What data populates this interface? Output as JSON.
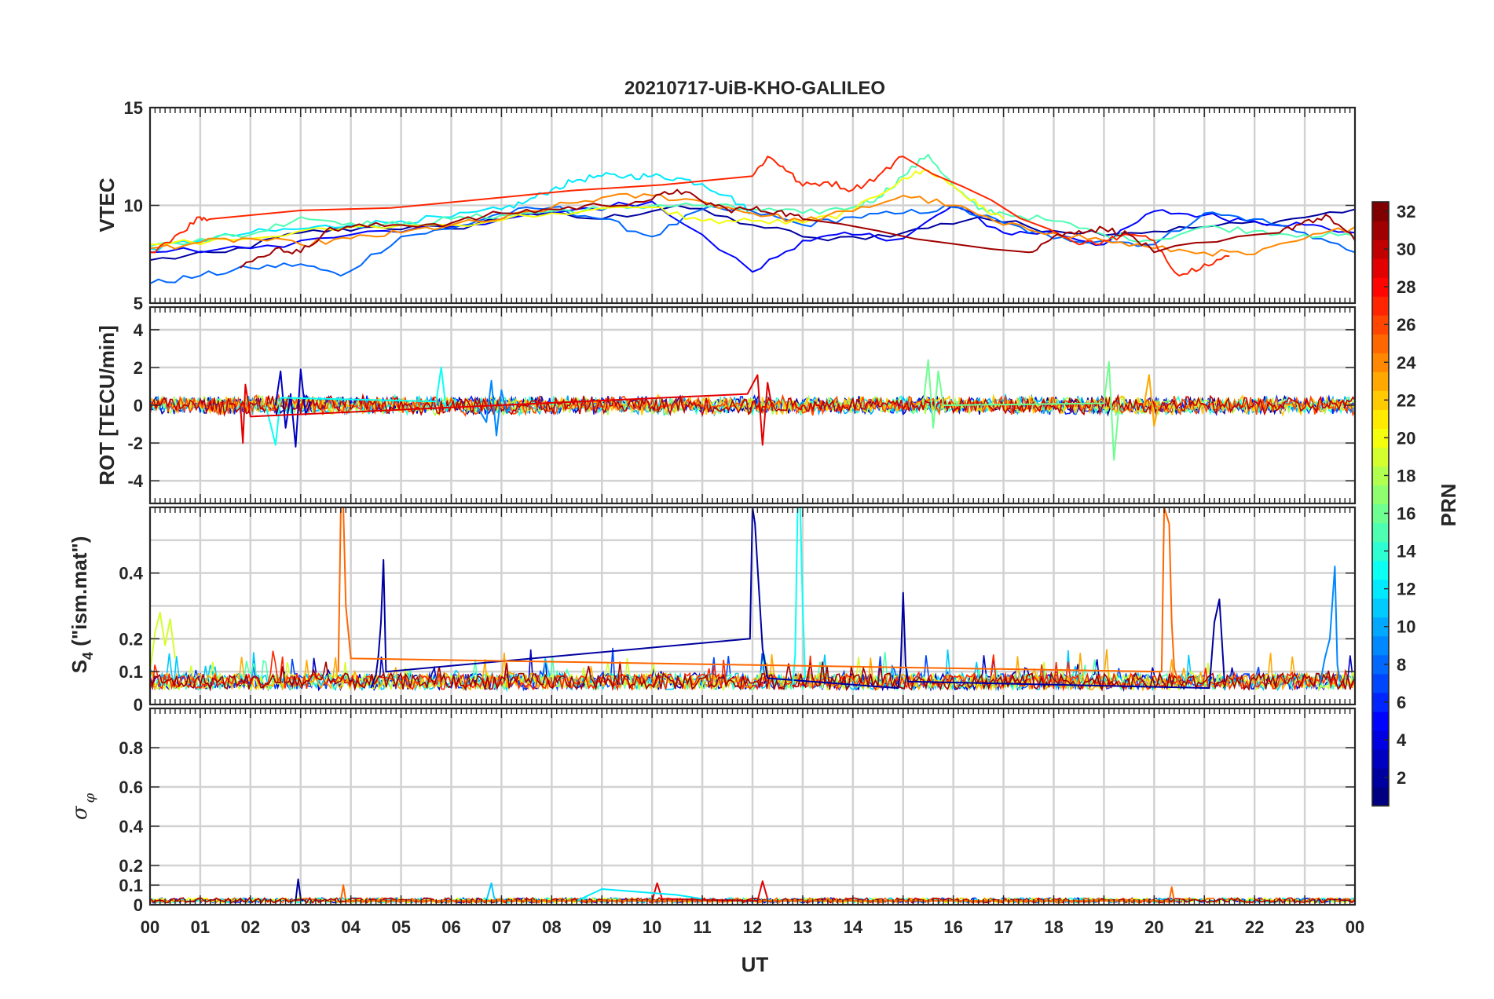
{
  "figure": {
    "title": "20210717-UiB-KHO-GALILEO",
    "xlabel": "UT",
    "x_ticks": [
      "00",
      "01",
      "02",
      "03",
      "04",
      "05",
      "06",
      "07",
      "08",
      "09",
      "10",
      "11",
      "12",
      "13",
      "14",
      "15",
      "16",
      "17",
      "18",
      "19",
      "20",
      "21",
      "22",
      "23",
      "00"
    ]
  },
  "colorbar": {
    "label": "PRN",
    "ticks": [
      "2",
      "4",
      "6",
      "8",
      "10",
      "12",
      "14",
      "16",
      "18",
      "20",
      "22",
      "24",
      "26",
      "28",
      "30",
      "32"
    ],
    "range": [
      1,
      32
    ],
    "colormap": "jet"
  },
  "chart_data": [
    {
      "type": "line",
      "panel": "vtec",
      "ylabel": "VTEC",
      "ylim": [
        5,
        15
      ],
      "y_ticks": [
        "5",
        "10",
        "15"
      ],
      "xlim": [
        0,
        24
      ],
      "grid": true,
      "series": [
        {
          "prn": 2,
          "x": [
            0,
            1.5,
            3,
            4.5,
            6,
            7.5,
            9,
            10.5,
            12,
            13.5,
            15,
            16.5,
            18,
            19.5,
            21,
            22.5,
            24
          ],
          "y": [
            7.2,
            7.6,
            8.6,
            8.9,
            8.8,
            9.6,
            9.3,
            10.0,
            9.0,
            8.2,
            8.6,
            9.4,
            8.7,
            8.6,
            8.9,
            9.2,
            9.8
          ]
        },
        {
          "prn": 5,
          "x": [
            0,
            2,
            4,
            6,
            8,
            10,
            12,
            13,
            14,
            15,
            16,
            17,
            18,
            19,
            20,
            21,
            22,
            23,
            24
          ],
          "y": [
            7.6,
            7.8,
            8.5,
            8.9,
            9.6,
            10.2,
            6.6,
            8.2,
            8.5,
            8.3,
            10.0,
            8.6,
            8.6,
            8.0,
            9.7,
            9.5,
            9.2,
            9.0,
            8.6
          ]
        },
        {
          "prn": 8,
          "x": [
            0,
            1,
            2,
            3,
            3.8,
            5,
            6,
            7,
            8,
            9,
            10,
            11,
            12,
            13,
            14,
            15,
            16,
            17,
            18,
            19,
            20,
            21,
            22,
            23,
            24
          ],
          "y": [
            6.0,
            6.4,
            6.8,
            7.0,
            6.4,
            8.4,
            8.8,
            9.6,
            9.9,
            9.3,
            8.4,
            9.8,
            9.7,
            9.0,
            9.4,
            9.6,
            9.9,
            9.1,
            8.3,
            8.2,
            8.0,
            9.6,
            9.3,
            8.6,
            7.6
          ]
        },
        {
          "prn": 12,
          "x": [
            0,
            1,
            2,
            3,
            4,
            5,
            6,
            7,
            7.5,
            8,
            8.5,
            9,
            9.5,
            10,
            10.5,
            11,
            11.5,
            12
          ],
          "y": [
            7.8,
            8.2,
            8.6,
            8.8,
            9.0,
            9.2,
            9.4,
            9.8,
            10.2,
            10.8,
            11.3,
            11.5,
            11.5,
            11.5,
            11.4,
            11.1,
            10.5,
            9.6
          ]
        },
        {
          "prn": 15,
          "x": [
            0,
            1,
            2,
            3,
            4,
            5,
            6,
            7,
            8,
            9,
            10,
            11,
            12,
            13,
            14,
            14.5,
            15,
            15.5,
            16,
            16.5,
            17,
            18,
            19,
            20,
            21,
            22,
            23,
            24
          ],
          "y": [
            7.9,
            8.3,
            8.5,
            9.4,
            9.1,
            9.0,
            9.3,
            9.5,
            9.7,
            9.8,
            10.0,
            10.0,
            9.8,
            9.6,
            9.9,
            10.4,
            11.5,
            12.6,
            11.0,
            9.8,
            9.6,
            9.2,
            8.5,
            8.2,
            8.9,
            8.7,
            8.5,
            8.4
          ]
        },
        {
          "prn": 20,
          "x": [
            0,
            2,
            4,
            6,
            8,
            10,
            11,
            12,
            13,
            14,
            15,
            15.5,
            16,
            16.5,
            17
          ],
          "y": [
            8.0,
            8.3,
            8.9,
            9.0,
            9.6,
            9.9,
            9.2,
            9.2,
            9.1,
            9.7,
            11.4,
            11.8,
            11.0,
            10.0,
            9.3
          ]
        },
        {
          "prn": 24,
          "x": [
            0,
            1,
            2,
            3,
            4,
            5,
            6,
            7,
            8,
            9,
            10,
            11,
            12,
            13,
            14,
            15,
            16,
            17,
            18,
            19,
            20,
            21,
            22,
            23,
            24
          ],
          "y": [
            7.8,
            8.1,
            8.3,
            8.0,
            8.3,
            8.6,
            9.0,
            9.3,
            9.9,
            10.4,
            10.5,
            10.2,
            9.6,
            9.2,
            9.7,
            10.5,
            10.0,
            9.0,
            8.6,
            8.2,
            7.8,
            7.6,
            7.5,
            8.3,
            8.9
          ]
        },
        {
          "prn": 27,
          "x": [
            0,
            0.6,
            1,
            1.2,
            12,
            12.3,
            12.6,
            13,
            13.5,
            14,
            14.5,
            15,
            18.5,
            19,
            19.5,
            20,
            20.5,
            21,
            21.5
          ],
          "y": [
            7.6,
            8.6,
            9.4,
            9.3,
            11.5,
            12.5,
            12.0,
            11.0,
            11.2,
            10.8,
            11.5,
            12.5,
            8.0,
            8.2,
            8.5,
            8.2,
            6.4,
            7.0,
            7.4
          ]
        },
        {
          "prn": 31,
          "x": [
            1.8,
            2.5,
            3,
            3.5,
            4,
            5,
            6,
            7,
            8,
            9,
            10,
            10.5,
            11,
            11.5,
            12,
            12.5,
            13,
            17.5,
            18,
            18.5,
            19,
            19.5,
            20,
            22.5,
            23,
            23.5,
            24
          ],
          "y": [
            6.8,
            7.8,
            7.6,
            8.7,
            8.9,
            9.0,
            9.1,
            9.6,
            9.8,
            10.0,
            10.3,
            10.8,
            10.2,
            9.8,
            9.8,
            9.7,
            9.3,
            7.6,
            8.4,
            8.7,
            8.8,
            8.5,
            7.6,
            8.6,
            9.2,
            9.4,
            8.2
          ]
        }
      ]
    },
    {
      "type": "line",
      "panel": "rot",
      "ylabel": "ROT [TECU/min]",
      "ylim": [
        -5.2,
        5.2
      ],
      "y_ticks": [
        "-4",
        "-2",
        "0",
        "2",
        "4"
      ],
      "xlim": [
        0,
        24
      ],
      "grid": true,
      "series": [
        {
          "prn": 3,
          "x": [
            2.5,
            2.6,
            2.7,
            2.8,
            2.9,
            3.0,
            3.1,
            3.2
          ],
          "y": [
            0,
            1.8,
            -1.2,
            0.6,
            -2.2,
            1.9,
            -0.5,
            0.2
          ]
        },
        {
          "prn": 9,
          "x": [
            6.5,
            6.7,
            6.8,
            6.9,
            7.0,
            7.1,
            7.2
          ],
          "y": [
            0,
            -0.9,
            1.3,
            -1.6,
            0.8,
            -0.4,
            0.1
          ]
        },
        {
          "prn": 13,
          "x": [
            2.3,
            2.4,
            2.5,
            2.6,
            5.7,
            5.8,
            5.9,
            6.0
          ],
          "y": [
            0,
            -1.0,
            -2.1,
            0.4,
            0.2,
            2.0,
            -0.3,
            0.1
          ]
        },
        {
          "prn": 16,
          "x": [
            15.4,
            15.5,
            15.6,
            15.7,
            15.8,
            19.0,
            19.1,
            19.2,
            19.3
          ],
          "y": [
            0,
            2.4,
            -1.2,
            1.8,
            0,
            0.1,
            2.3,
            -2.9,
            0.0
          ]
        },
        {
          "prn": 23,
          "x": [
            19.8,
            19.9,
            20.0,
            20.1
          ],
          "y": [
            0,
            1.6,
            -1.1,
            0.2
          ]
        },
        {
          "prn": 29,
          "x": [
            1.8,
            1.85,
            1.9,
            2.0,
            11.9,
            12.1,
            12.2,
            12.3,
            12.4
          ],
          "y": [
            0,
            -2.0,
            1.1,
            -0.6,
            0.6,
            1.6,
            -2.1,
            1.2,
            -0.3
          ]
        }
      ]
    },
    {
      "type": "line",
      "panel": "s4",
      "ylabel": "S4 (\"ism.mat\")",
      "ylim": [
        0,
        0.6
      ],
      "y_ticks": [
        "0",
        "0.1",
        "0.2",
        "0.4"
      ],
      "xlim": [
        0,
        24
      ],
      "grid": true,
      "series": [
        {
          "prn": 2,
          "x": [
            4.4,
            4.5,
            4.55,
            4.6,
            4.65,
            4.7,
            11.95,
            12.0,
            12.05,
            12.1,
            12.2,
            12.3,
            14.9,
            14.95,
            15.0,
            15.05,
            15.1,
            21.1,
            21.2,
            21.3,
            21.4
          ],
          "y": [
            0.05,
            0.09,
            0.15,
            0.25,
            0.44,
            0.1,
            0.2,
            0.6,
            0.55,
            0.42,
            0.17,
            0.08,
            0.05,
            0.11,
            0.34,
            0.12,
            0.07,
            0.05,
            0.25,
            0.32,
            0.07
          ]
        },
        {
          "prn": 9,
          "x": [
            23.3,
            23.4,
            23.5,
            23.6,
            23.65,
            23.7
          ],
          "y": [
            0.06,
            0.14,
            0.2,
            0.42,
            0.12,
            0.07
          ]
        },
        {
          "prn": 13,
          "x": [
            12.8,
            12.85,
            12.9,
            12.95,
            13.0,
            13.05
          ],
          "y": [
            0.06,
            0.15,
            0.6,
            0.6,
            0.3,
            0.08
          ]
        },
        {
          "prn": 19,
          "x": [
            0,
            0.1,
            0.2,
            0.3,
            0.4,
            0.5
          ],
          "y": [
            0.1,
            0.22,
            0.28,
            0.18,
            0.26,
            0.14
          ]
        },
        {
          "prn": 25,
          "x": [
            3.75,
            3.8,
            3.85,
            3.9,
            4.0,
            20.15,
            20.2,
            20.3,
            20.35,
            20.4,
            20.5
          ],
          "y": [
            0.1,
            0.6,
            0.6,
            0.3,
            0.14,
            0.1,
            0.6,
            0.55,
            0.25,
            0.11,
            0.06
          ]
        }
      ]
    },
    {
      "type": "line",
      "panel": "sigma_phi",
      "ylabel": "σ φ",
      "ylim": [
        0,
        1
      ],
      "y_ticks": [
        "0",
        "0.1",
        "0.2",
        "0.4",
        "0.6",
        "0.8"
      ],
      "xlim": [
        0,
        24
      ],
      "grid": true,
      "series": [
        {
          "prn": 2,
          "x": [
            2.9,
            2.95,
            3.0,
            3.05
          ],
          "y": [
            0.02,
            0.13,
            0.03,
            0.02
          ]
        },
        {
          "prn": 11,
          "x": [
            6.7,
            6.8,
            6.85,
            6.9
          ],
          "y": [
            0.02,
            0.11,
            0.04,
            0.02
          ]
        },
        {
          "prn": 25,
          "x": [
            3.8,
            3.85,
            3.9,
            20.3,
            20.35,
            20.4
          ],
          "y": [
            0.02,
            0.1,
            0.02,
            0.02,
            0.09,
            0.02
          ]
        },
        {
          "prn": 29,
          "x": [
            10.0,
            10.1,
            10.2,
            12.1,
            12.2,
            12.3
          ],
          "y": [
            0.02,
            0.11,
            0.03,
            0.02,
            0.12,
            0.03
          ]
        },
        {
          "prn": 12,
          "x": [
            8.5,
            9.0,
            9.5,
            10.0,
            10.5,
            11.0
          ],
          "y": [
            0.02,
            0.08,
            0.07,
            0.06,
            0.05,
            0.03
          ]
        }
      ]
    }
  ]
}
